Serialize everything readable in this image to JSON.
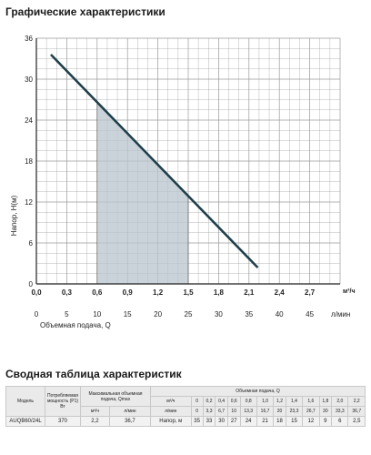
{
  "headings": {
    "chart": "Графические характеристики",
    "table": "Сводная таблица характеристик"
  },
  "colors": {
    "curve": "#1f3f4a",
    "shade": "#b8c4cc",
    "grid": "#9a9a9a",
    "axis": "#222222"
  },
  "chart_data": {
    "type": "line",
    "title": "",
    "ylabel": "Напор, H(м)",
    "xlabel": "Объемная подача, Q",
    "x_unit_top": "м³/ч",
    "x_unit_bottom": "л/мин",
    "ylim": [
      0,
      36
    ],
    "xlim": [
      0,
      3.0
    ],
    "yticks": [
      "0",
      "6",
      "12",
      "18",
      "24",
      "30",
      "36"
    ],
    "xticks_top": [
      "0,0",
      "0,3",
      "0,6",
      "0,9",
      "1,2",
      "1,5",
      "1,8",
      "2,1",
      "2,4",
      "2,7"
    ],
    "xticks_bottom": [
      "0",
      "5",
      "10",
      "15",
      "20",
      "25",
      "30",
      "35",
      "40",
      "45"
    ],
    "grid": true,
    "series": [
      {
        "x": [
          0.15,
          2.18
        ],
        "y": [
          33.5,
          2.5
        ]
      }
    ],
    "shaded_region": {
      "x_from": 0.6,
      "x_to": 1.5
    }
  },
  "table": {
    "headers": {
      "model": "Модель",
      "power": "Потребляемая мощность (P1) Вт",
      "maxflow": "Максимальная объемная подача, Qmax",
      "flow": "Объемная подача, Q"
    },
    "unit_m3h": "м³/ч",
    "unit_lmin": "л/мин",
    "q_m3h": [
      "0",
      "0,2",
      "0,4",
      "0,6",
      "0,8",
      "1,0",
      "1,2",
      "1,4",
      "1,6",
      "1,8",
      "2,0",
      "2,2"
    ],
    "q_lmin": [
      "0",
      "3,3",
      "6,7",
      "10",
      "13,3",
      "16,7",
      "20",
      "23,3",
      "26,7",
      "30",
      "33,3",
      "36,7"
    ],
    "row": {
      "model": "AUQB60/24L",
      "power": "370",
      "qmax_m3h": "2,2",
      "qmax_lmin": "36,7",
      "head_label": "Напор, м",
      "heads": [
        "35",
        "33",
        "30",
        "27",
        "24",
        "21",
        "18",
        "15",
        "12",
        "9",
        "6",
        "2,5"
      ]
    }
  }
}
